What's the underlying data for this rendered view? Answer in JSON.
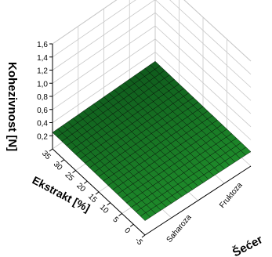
{
  "chart_data": {
    "type": "surface3d",
    "title": "",
    "zlabel": "Kohezivnost [N]",
    "ylabel": "Ekstrakt [%]",
    "xlabel": "Šećer",
    "zlim": [
      0,
      1.6
    ],
    "z_ticks": [
      "1,6",
      "1,4",
      "1,2",
      "1,0",
      "0,8",
      "0,6",
      "0,4",
      "0,2"
    ],
    "y_range": [
      -5,
      35
    ],
    "y_ticks": [
      "35",
      "30",
      "25",
      "20",
      "15",
      "10",
      "5",
      "0",
      "-5"
    ],
    "x_categories": [
      "Saharoza",
      "Fruktoza"
    ],
    "surface": {
      "corners": {
        "saharoza_ekstrakt_min": 0.22,
        "saharoza_ekstrakt_max": 0.25,
        "fruktoza_ekstrakt_min": 0.22,
        "fruktoza_ekstrakt_max": 0.26
      },
      "grid_resolution": 20
    },
    "grid": true,
    "colors": {
      "surface_low": "#1e8a2a",
      "surface_high": "#0f5a1c",
      "mesh": "#000000",
      "gridline": "#c8c8c8"
    }
  }
}
